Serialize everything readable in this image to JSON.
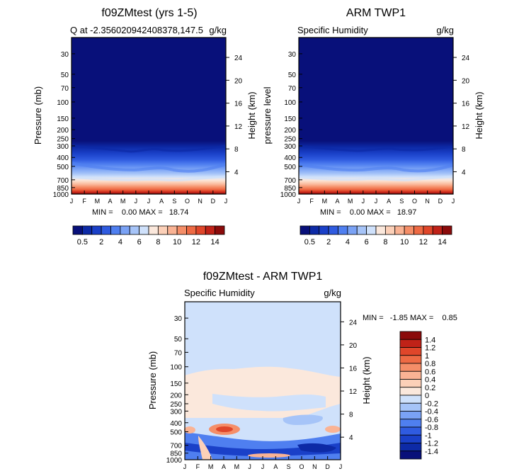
{
  "charts": [
    {
      "title": "f09ZMtest (yrs 1-5)",
      "left_label": "Q at -2.356020942408378,147.5",
      "right_label": "g/kg",
      "ylabel": "Pressure (mb)",
      "y2label": "Height (km)",
      "minmax_text": "MIN =    0.00 MAX =   18.74"
    },
    {
      "title": "ARM TWP1",
      "left_label": "Specific Humidity",
      "right_label": "g/kg",
      "ylabel": "pressure level",
      "y2label": "Height (km)",
      "minmax_text": "MIN =    0.00 MAX =   18.97"
    },
    {
      "title": "f09ZMtest - ARM TWP1",
      "left_label": "Specific Humidity",
      "right_label": "g/kg",
      "ylabel": "Pressure (mb)",
      "y2label": "Height (km)",
      "minmax_text": "MIN =   -1.85 MAX =    0.85"
    }
  ],
  "chart_data": [
    {
      "type": "heatmap",
      "title": "f09ZMtest (yrs 1-5)",
      "x": [
        "J",
        "F",
        "M",
        "A",
        "M",
        "J",
        "J",
        "A",
        "S",
        "O",
        "N",
        "D",
        "J"
      ],
      "y_pressure_ticks": [
        30,
        50,
        70,
        100,
        150,
        200,
        250,
        300,
        400,
        500,
        700,
        850,
        1000
      ],
      "y_pressure_range": [
        20,
        1000
      ],
      "y2_height_ticks": [
        4,
        8,
        12,
        16,
        20,
        24
      ],
      "units": "g/kg",
      "min": 0.0,
      "max": 18.74
    },
    {
      "type": "heatmap",
      "title": "ARM TWP1",
      "x": [
        "J",
        "F",
        "M",
        "A",
        "M",
        "J",
        "J",
        "A",
        "S",
        "O",
        "N",
        "D",
        "J"
      ],
      "y_pressure_ticks": [
        30,
        50,
        70,
        100,
        150,
        200,
        250,
        300,
        400,
        500,
        700,
        850,
        1000
      ],
      "y_pressure_range": [
        20,
        1000
      ],
      "y2_height_ticks": [
        4,
        8,
        12,
        16,
        20,
        24
      ],
      "units": "g/kg",
      "min": 0.0,
      "max": 18.97
    },
    {
      "type": "heatmap",
      "title": "f09ZMtest - ARM TWP1",
      "x": [
        "J",
        "F",
        "M",
        "A",
        "M",
        "J",
        "J",
        "A",
        "S",
        "O",
        "N",
        "D",
        "J"
      ],
      "y_pressure_ticks": [
        30,
        50,
        70,
        100,
        150,
        200,
        250,
        300,
        400,
        500,
        700,
        850,
        1000
      ],
      "y_pressure_range": [
        20,
        1000
      ],
      "y2_height_ticks": [
        4,
        8,
        12,
        16,
        20,
        24
      ],
      "units": "g/kg",
      "min": -1.85,
      "max": 0.85
    }
  ],
  "colorbar_top": {
    "labels": [
      "0.5",
      "2",
      "4",
      "6",
      "8",
      "10",
      "12",
      "14"
    ],
    "colors": [
      "#08107a",
      "#0d2aa6",
      "#1a40c8",
      "#2f5be0",
      "#4f7ff0",
      "#7aa2f5",
      "#a6c4f8",
      "#cfe1fb",
      "#fbe8dc",
      "#fcd0b8",
      "#fab394",
      "#f58e68",
      "#ee6a44",
      "#e0462a",
      "#c02218",
      "#8b0b0b"
    ]
  },
  "colorbar_diff": {
    "labels": [
      "1.4",
      "1.2",
      "1",
      "0.8",
      "0.6",
      "0.4",
      "0.2",
      "0",
      "-0.2",
      "-0.4",
      "-0.6",
      "-0.8",
      "-1",
      "-1.2",
      "-1.4"
    ],
    "colors": [
      "#8b0b0b",
      "#c02218",
      "#e0462a",
      "#ee6a44",
      "#f58e68",
      "#fab394",
      "#fcd0b8",
      "#fbe8dc",
      "#cfe1fb",
      "#a6c4f8",
      "#7aa2f5",
      "#4f7ff0",
      "#2f5be0",
      "#1a40c8",
      "#0d2aa6",
      "#08107a"
    ]
  }
}
